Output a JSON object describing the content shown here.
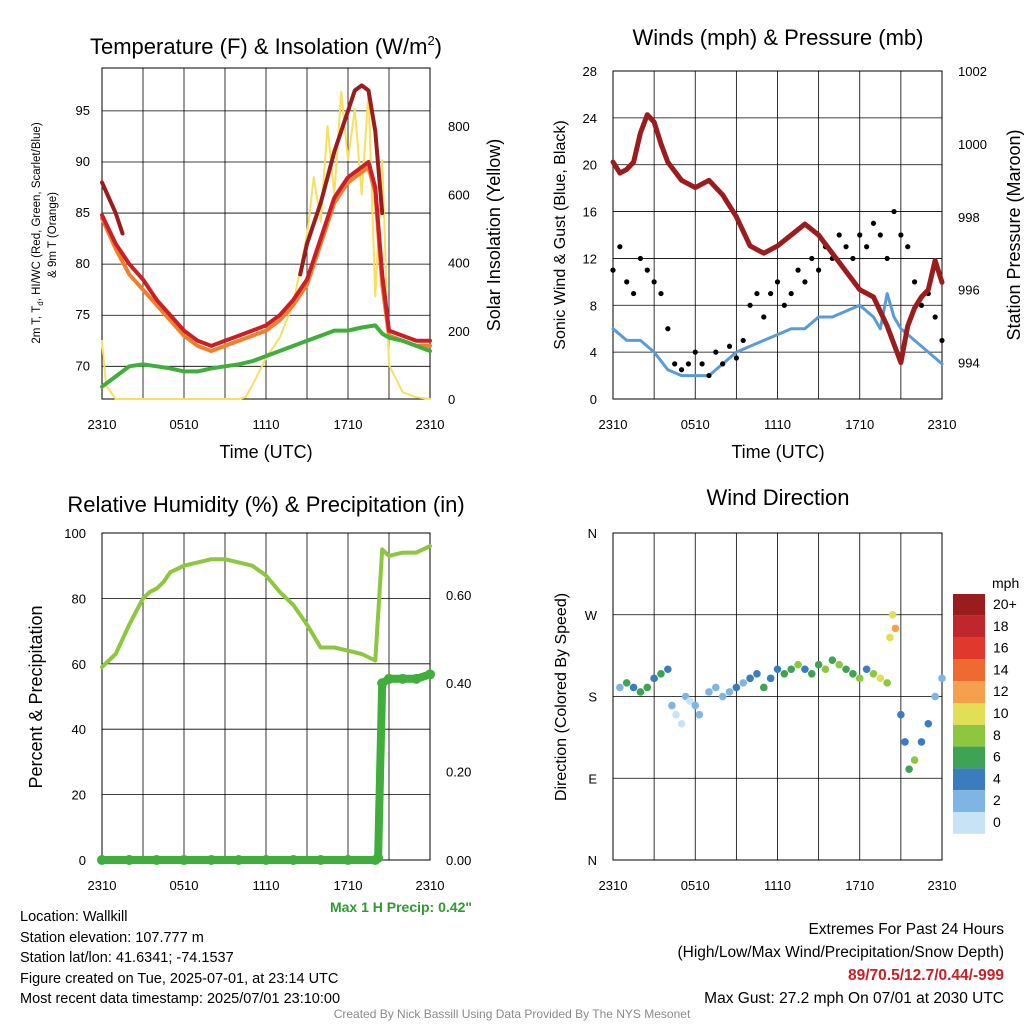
{
  "charts": {
    "temperature": {
      "title": "Temperature (F) & Insolation (W/m²)",
      "ylabel_left_1": "2m T, T",
      "ylabel_left_sub": "d",
      "ylabel_left_2": ", HI/WC (Red, Green, Scarlet/Blue)",
      "ylabel_left_3": "& 9m T (Orange)",
      "ylabel_right": "Solar Insolation (Yellow)",
      "xlabel": "Time (UTC)",
      "x_ticks": [
        "2310",
        "0510",
        "1110",
        "1710",
        "2310"
      ],
      "y_ticks_left": [
        "70",
        "75",
        "80",
        "85",
        "90",
        "95"
      ],
      "y_ticks_right": [
        "0",
        "200",
        "400",
        "600",
        "800"
      ]
    },
    "winds": {
      "title": "Winds (mph) & Pressure (mb)",
      "ylabel_left": "Sonic Wind & Gust (Blue, Black)",
      "ylabel_right": "Station Pressure (Maroon)",
      "xlabel": "Time (UTC)",
      "x_ticks": [
        "2310",
        "0510",
        "1110",
        "1710",
        "2310"
      ],
      "y_ticks_left": [
        "0",
        "4",
        "8",
        "12",
        "16",
        "20",
        "24",
        "28"
      ],
      "y_ticks_right": [
        "994",
        "996",
        "998",
        "1000",
        "1002"
      ]
    },
    "humidity": {
      "title": "Relative Humidity (%) & Precipitation (in)",
      "ylabel_left": "Percent & Precipitation",
      "x_ticks": [
        "2310",
        "0510",
        "1110",
        "1710",
        "2310"
      ],
      "y_ticks_left": [
        "0",
        "20",
        "40",
        "60",
        "80",
        "100"
      ],
      "y_ticks_right": [
        "0.00",
        "0.20",
        "0.40",
        "0.60"
      ],
      "max_precip": "Max 1 H Precip: 0.42\""
    },
    "direction": {
      "title": "Wind Direction",
      "ylabel_left": "Direction (Colored By Speed)",
      "x_ticks": [
        "2310",
        "0510",
        "1110",
        "1710",
        "2310"
      ],
      "y_ticks": [
        "N",
        "E",
        "S",
        "W",
        "N"
      ],
      "legend_title": "mph",
      "legend_labels": [
        "20+",
        "18",
        "16",
        "14",
        "12",
        "10",
        "8",
        "6",
        "4",
        "2",
        "0"
      ],
      "legend_colors": [
        "#9b1c1c",
        "#c0272d",
        "#e0382d",
        "#ee6a30",
        "#f6a04d",
        "#e3df55",
        "#8dc63f",
        "#3ea354",
        "#3a7dbf",
        "#7fb5e3",
        "#c8e3f5"
      ]
    }
  },
  "colors": {
    "temp": "#c91f26",
    "dewpoint": "#3fae3a",
    "hiwc": "#9b1c1c",
    "temp9m": "#f07f2c",
    "solar": "#f6e05e",
    "wind": "#5b9bd5",
    "gust": "#000000",
    "pressure": "#9b1c1c",
    "rh": "#8dc63f",
    "precip": "#3fae3a",
    "extremes": "#c91f26",
    "precip_text": "#2e9b2e"
  },
  "chart_data": [
    {
      "type": "line",
      "title": "Temperature (F) & Insolation (W/m²)",
      "x_ticks": [
        "2310",
        "0510",
        "1110",
        "1710",
        "2310"
      ],
      "xlim_hours": [
        0,
        24
      ],
      "ylim_left": [
        66.8,
        99.2
      ],
      "ylim_right": [
        0,
        970
      ],
      "series": [
        {
          "axis": "left",
          "x": [
            0,
            1,
            2,
            3,
            4,
            5,
            6,
            7,
            8,
            9,
            10,
            11,
            12,
            13,
            14,
            15,
            16,
            17,
            18,
            19,
            19.5,
            20,
            20.5,
            21,
            22,
            23,
            24
          ],
          "values": [
            84.5,
            81.5,
            79,
            77.5,
            76,
            74.5,
            73,
            72,
            71.5,
            72,
            72.5,
            73,
            73.5,
            74.5,
            76,
            78,
            82,
            86,
            88,
            89,
            89.5,
            87,
            78,
            73,
            72.5,
            72,
            72
          ]
        },
        {
          "axis": "left",
          "x": [
            0,
            1,
            2,
            3,
            4,
            5,
            6,
            7,
            8,
            9,
            10,
            11,
            12,
            13,
            14,
            15,
            16,
            17,
            18,
            19,
            19.5,
            20,
            20.5,
            21,
            22,
            23,
            24
          ],
          "values": [
            84.8,
            82,
            80,
            78.5,
            76.5,
            75,
            73.5,
            72.5,
            72,
            72.5,
            73,
            73.5,
            74,
            75,
            76.5,
            78.5,
            82.5,
            86.5,
            88.5,
            89.5,
            90,
            87.5,
            79,
            73.5,
            73,
            72.5,
            72.5
          ]
        },
        {
          "axis": "left",
          "x": [
            0,
            1,
            2,
            3,
            4,
            5,
            6,
            7,
            8,
            9,
            10,
            11,
            12,
            13,
            14,
            15,
            16,
            17,
            18,
            19,
            20,
            20.5,
            21,
            22,
            23,
            24
          ],
          "values": [
            68,
            69,
            70,
            70.2,
            70,
            69.8,
            69.5,
            69.5,
            69.8,
            70,
            70.2,
            70.5,
            71,
            71.5,
            72,
            72.5,
            73,
            73.5,
            73.5,
            73.8,
            74,
            73.2,
            72.8,
            72.5,
            72,
            71.5
          ]
        },
        {
          "axis": "left",
          "x": [
            0,
            0.5,
            1,
            1.5
          ],
          "values": [
            88,
            86.5,
            85,
            83
          ]
        },
        {
          "axis": "left",
          "x": [
            14.5,
            15,
            16,
            17,
            18,
            18.5,
            19,
            19.5,
            20,
            20.5
          ],
          "values": [
            79,
            82,
            86,
            91,
            95,
            97,
            97.5,
            97,
            93,
            85
          ]
        },
        {
          "axis": "right",
          "x": [
            0,
            0.3,
            1,
            2,
            4,
            6,
            8,
            10,
            10.5,
            11,
            12,
            13,
            14,
            15,
            15.5,
            16,
            16.5,
            17,
            17.5,
            18,
            18.5,
            19,
            19.5,
            20,
            20.5,
            21,
            22,
            23,
            24
          ],
          "values": [
            170,
            40,
            0,
            0,
            0,
            0,
            0,
            0,
            5,
            40,
            120,
            180,
            280,
            480,
            650,
            520,
            800,
            600,
            900,
            700,
            850,
            600,
            900,
            300,
            700,
            100,
            20,
            5,
            0
          ]
        }
      ]
    },
    {
      "type": "line",
      "title": "Winds (mph) & Pressure (mb)",
      "x_ticks": [
        "2310",
        "0510",
        "1110",
        "1710",
        "2310"
      ],
      "xlim_hours": [
        0,
        24
      ],
      "ylim_left": [
        0,
        28
      ],
      "ylim_right": [
        993.0,
        1002.0
      ],
      "series": [
        {
          "axis": "left",
          "x": [
            0,
            1,
            2,
            3,
            4,
            5,
            6,
            7,
            8,
            9,
            10,
            11,
            12,
            13,
            14,
            15,
            16,
            17,
            18,
            19,
            19.5,
            20,
            20.5,
            21,
            22,
            23,
            24
          ],
          "values": [
            6,
            5,
            5,
            4,
            2.5,
            2,
            2,
            2,
            3,
            4,
            4.5,
            5,
            5.5,
            6,
            6,
            7,
            7,
            7.5,
            8,
            7,
            6,
            9,
            7,
            6,
            5,
            4,
            3
          ]
        },
        {
          "axis": "left",
          "x": [
            0,
            0.5,
            1,
            1.5,
            2,
            2.5,
            3,
            3.5,
            4,
            4.5,
            5,
            5.5,
            6,
            6.5,
            7,
            7.5,
            8,
            8.5,
            9,
            9.5,
            10,
            10.5,
            11,
            11.5,
            12,
            12.5,
            13,
            13.5,
            14,
            14.5,
            15,
            15.5,
            16,
            16.5,
            17,
            17.5,
            18,
            18.5,
            19,
            19.5,
            20,
            20.5,
            21,
            21.5,
            22,
            22.5,
            23,
            23.5,
            24
          ],
          "values": [
            11,
            13,
            10,
            9,
            12,
            11,
            10,
            9,
            6,
            3,
            2.5,
            3,
            4,
            3,
            2,
            4,
            3,
            4.5,
            3.5,
            5,
            8,
            9,
            7,
            9,
            10,
            8,
            9,
            11,
            10,
            12,
            11,
            13,
            12,
            14,
            13,
            12,
            14,
            13,
            15,
            14,
            12,
            16,
            14,
            13,
            10,
            8,
            9,
            7,
            5
          ]
        },
        {
          "axis": "right",
          "x": [
            0,
            0.5,
            1,
            1.5,
            2,
            2.5,
            3,
            3.5,
            4,
            5,
            6,
            7,
            8,
            9,
            10,
            11,
            12,
            13,
            14,
            15,
            16,
            17,
            18,
            19,
            20,
            20.5,
            21,
            21.5,
            22,
            22.5,
            23,
            23.5,
            24
          ],
          "values": [
            999.5,
            999.2,
            999.3,
            999.5,
            1000.3,
            1000.8,
            1000.6,
            1000.0,
            999.5,
            999.0,
            998.8,
            999.0,
            998.6,
            998.0,
            997.2,
            997.0,
            997.2,
            997.5,
            997.8,
            997.5,
            997.0,
            996.5,
            996.0,
            995.8,
            995.0,
            994.5,
            994.0,
            995.0,
            995.5,
            995.8,
            996.0,
            996.8,
            996.2
          ]
        }
      ]
    },
    {
      "type": "line",
      "title": "Relative Humidity (%) & Precipitation (in)",
      "x_ticks": [
        "2310",
        "0510",
        "1110",
        "1710",
        "2310"
      ],
      "xlim_hours": [
        0,
        24
      ],
      "ylim_left": [
        0,
        100
      ],
      "ylim_right": [
        0,
        0.74
      ],
      "series": [
        {
          "axis": "left",
          "x": [
            0,
            1,
            2,
            3,
            3.5,
            4,
            4.5,
            5,
            5.5,
            6,
            7,
            8,
            9,
            10,
            11,
            12,
            13,
            14,
            15,
            16,
            17,
            18,
            19,
            20,
            20.5,
            21,
            22,
            23,
            24
          ],
          "values": [
            59,
            63,
            72,
            80,
            82,
            83,
            85,
            88,
            89,
            90,
            91,
            92,
            92,
            91,
            90,
            87,
            82,
            78,
            72,
            65,
            65,
            64,
            63,
            61,
            95,
            93,
            94,
            94,
            96
          ]
        },
        {
          "axis": "right",
          "x": [
            0,
            2,
            4,
            6,
            8,
            10,
            12,
            14,
            16,
            18,
            20,
            20.2,
            20.5,
            21,
            22,
            23,
            24
          ],
          "values": [
            0,
            0,
            0,
            0,
            0,
            0,
            0,
            0,
            0,
            0,
            0,
            0.005,
            0.4,
            0.41,
            0.41,
            0.41,
            0.42
          ]
        }
      ]
    },
    {
      "type": "scatter",
      "title": "Wind Direction",
      "x_ticks": [
        "2310",
        "0510",
        "1110",
        "1710",
        "2310"
      ],
      "xlim_hours": [
        0,
        24
      ],
      "y_ticks": [
        "N",
        "E",
        "S",
        "W",
        "N"
      ],
      "ylim_deg": [
        0,
        360
      ],
      "x": [
        0.5,
        1,
        1.5,
        2,
        2.5,
        3,
        3.5,
        4,
        4.3,
        4.6,
        5,
        5.3,
        5.6,
        6,
        6.3,
        7,
        7.5,
        8,
        8.5,
        9,
        9.5,
        10,
        10.5,
        11,
        11.5,
        12,
        12.5,
        13,
        13.5,
        14,
        14.5,
        15,
        15.5,
        16,
        16.5,
        17,
        17.5,
        18,
        18.5,
        19,
        19.5,
        20,
        20.2,
        20.4,
        20.6,
        21,
        21.3,
        21.6,
        22,
        22.5,
        23,
        23.5,
        24
      ],
      "deg": [
        190,
        195,
        190,
        185,
        190,
        200,
        205,
        210,
        170,
        160,
        150,
        180,
        175,
        170,
        160,
        185,
        190,
        180,
        185,
        190,
        195,
        200,
        205,
        190,
        200,
        210,
        205,
        210,
        215,
        210,
        205,
        215,
        210,
        220,
        215,
        210,
        205,
        200,
        210,
        205,
        200,
        195,
        245,
        270,
        255,
        160,
        130,
        100,
        110,
        130,
        150,
        180,
        200
      ],
      "speed": [
        2,
        5,
        4,
        6,
        5,
        3,
        6,
        4,
        1,
        0,
        0,
        1,
        0,
        2,
        1,
        2,
        2,
        1,
        2,
        3,
        2,
        4,
        3,
        5,
        4,
        3,
        6,
        5,
        7,
        4,
        6,
        5,
        7,
        6,
        8,
        5,
        6,
        7,
        4,
        7,
        9,
        8,
        10,
        10,
        12,
        3,
        4,
        6,
        7,
        4,
        3,
        2,
        2
      ]
    }
  ],
  "info": {
    "location": "Location: Wallkill",
    "elevation": "Station elevation: 107.777 m",
    "latlon": "Station lat/lon: 41.6341; -74.1537",
    "created": "Figure created on Tue, 2025-07-01, at 23:14 UTC",
    "recent": "Most recent data timestamp: 2025/07/01 23:10:00",
    "extremes_title": "Extremes For Past 24 Hours",
    "extremes_sub": "(High/Low/Max Wind/Precipitation/Snow Depth)",
    "extremes_values": "89/70.5/12.7/0.44/-999",
    "max_gust": "Max Gust: 27.2 mph On 07/01 at 2030 UTC",
    "credit": "Created By Nick Bassill Using Data Provided By The NYS Mesonet"
  }
}
